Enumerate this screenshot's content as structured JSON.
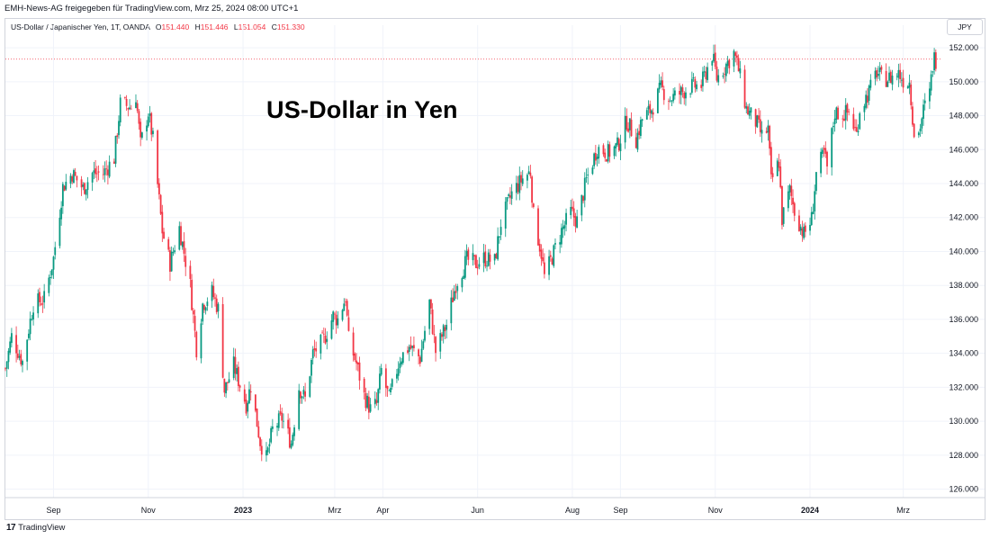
{
  "header": {
    "attribution": "EMH-News-AG freigegeben für TradingView.com, Mrz 25, 2024 08:00 UTC+1"
  },
  "legend": {
    "symbol": "US-Dollar / Japanischer Yen, 1T, OANDA",
    "o_label": "O",
    "o_value": "151.440",
    "h_label": "H",
    "h_value": "151.446",
    "l_label": "L",
    "l_value": "151.054",
    "c_label": "C",
    "c_value": "151.330"
  },
  "currency": "JPY",
  "footer": {
    "logo": "17",
    "brand": "TradingView"
  },
  "colors": {
    "up": "#089981",
    "down": "#f23645",
    "grid": "#f0f3fa",
    "axis_text": "#131722"
  },
  "chart_data": {
    "type": "candlestick",
    "title": "US-Dollar in Yen",
    "xlabel": "",
    "ylabel": "",
    "ylim": [
      125.5,
      152.8
    ],
    "grid": true,
    "y_ticks": [
      "126.000",
      "128.000",
      "130.000",
      "132.000",
      "134.000",
      "136.000",
      "138.000",
      "140.000",
      "142.000",
      "144.000",
      "146.000",
      "148.000",
      "150.000",
      "152.000"
    ],
    "x_ticks": [
      {
        "label": "Sep",
        "date": "2022-09-01",
        "bold": false
      },
      {
        "label": "Nov",
        "date": "2022-11-01",
        "bold": false
      },
      {
        "label": "2023",
        "date": "2023-01-01",
        "bold": true
      },
      {
        "label": "Mrz",
        "date": "2023-03-01",
        "bold": false
      },
      {
        "label": "Apr",
        "date": "2023-04-01",
        "bold": false
      },
      {
        "label": "Jun",
        "date": "2023-06-01",
        "bold": false
      },
      {
        "label": "Aug",
        "date": "2023-08-01",
        "bold": false
      },
      {
        "label": "Sep",
        "date": "2023-09-01",
        "bold": false
      },
      {
        "label": "Nov",
        "date": "2023-11-01",
        "bold": false
      },
      {
        "label": "2024",
        "date": "2024-01-01",
        "bold": true
      },
      {
        "label": "Mrz",
        "date": "2024-03-01",
        "bold": false
      }
    ],
    "last_price": 151.33,
    "close_series": [
      [
        "2022-08-01",
        133.1
      ],
      [
        "2022-08-05",
        135.0
      ],
      [
        "2022-08-12",
        133.5
      ],
      [
        "2022-08-19",
        136.9
      ],
      [
        "2022-08-26",
        137.2
      ],
      [
        "2022-09-01",
        139.6
      ],
      [
        "2022-09-07",
        143.8
      ],
      [
        "2022-09-13",
        144.6
      ],
      [
        "2022-09-20",
        143.7
      ],
      [
        "2022-09-26",
        144.6
      ],
      [
        "2022-10-03",
        144.6
      ],
      [
        "2022-10-10",
        145.5
      ],
      [
        "2022-10-14",
        148.7
      ],
      [
        "2022-10-21",
        148.5
      ],
      [
        "2022-10-24",
        149.2
      ],
      [
        "2022-10-27",
        146.3
      ],
      [
        "2022-11-01",
        148.2
      ],
      [
        "2022-11-04",
        146.6
      ],
      [
        "2022-11-10",
        141.2
      ],
      [
        "2022-11-15",
        139.3
      ],
      [
        "2022-11-21",
        141.4
      ],
      [
        "2022-11-28",
        138.0
      ],
      [
        "2022-12-02",
        134.3
      ],
      [
        "2022-12-06",
        136.9
      ],
      [
        "2022-12-12",
        137.6
      ],
      [
        "2022-12-16",
        136.6
      ],
      [
        "2022-12-20",
        131.8
      ],
      [
        "2022-12-26",
        133.3
      ],
      [
        "2023-01-03",
        131.0
      ],
      [
        "2023-01-06",
        132.1
      ],
      [
        "2023-01-12",
        128.8
      ],
      [
        "2023-01-16",
        127.8
      ],
      [
        "2023-01-20",
        129.5
      ],
      [
        "2023-01-26",
        130.2
      ],
      [
        "2023-02-01",
        128.7
      ],
      [
        "2023-02-06",
        132.0
      ],
      [
        "2023-02-10",
        131.3
      ],
      [
        "2023-02-15",
        134.0
      ],
      [
        "2023-02-22",
        134.8
      ],
      [
        "2023-02-28",
        136.2
      ],
      [
        "2023-03-03",
        136.0
      ],
      [
        "2023-03-08",
        137.3
      ],
      [
        "2023-03-10",
        134.8
      ],
      [
        "2023-03-15",
        133.4
      ],
      [
        "2023-03-20",
        131.5
      ],
      [
        "2023-03-24",
        130.7
      ],
      [
        "2023-03-28",
        131.0
      ],
      [
        "2023-03-31",
        133.0
      ],
      [
        "2023-04-05",
        131.3
      ],
      [
        "2023-04-12",
        133.7
      ],
      [
        "2023-04-18",
        134.4
      ],
      [
        "2023-04-25",
        133.7
      ],
      [
        "2023-05-01",
        137.0
      ],
      [
        "2023-05-05",
        134.1
      ],
      [
        "2023-05-12",
        135.7
      ],
      [
        "2023-05-18",
        138.1
      ],
      [
        "2023-05-25",
        139.5
      ],
      [
        "2023-05-31",
        139.3
      ],
      [
        "2023-06-05",
        139.6
      ],
      [
        "2023-06-12",
        139.4
      ],
      [
        "2023-06-16",
        141.7
      ],
      [
        "2023-06-23",
        143.4
      ],
      [
        "2023-06-30",
        144.3
      ],
      [
        "2023-07-05",
        144.7
      ],
      [
        "2023-07-07",
        142.1
      ],
      [
        "2023-07-12",
        139.9
      ],
      [
        "2023-07-14",
        138.5
      ],
      [
        "2023-07-19",
        139.7
      ],
      [
        "2023-07-25",
        141.2
      ],
      [
        "2023-07-31",
        142.3
      ],
      [
        "2023-08-04",
        141.8
      ],
      [
        "2023-08-10",
        144.2
      ],
      [
        "2023-08-17",
        146.1
      ],
      [
        "2023-08-24",
        145.8
      ],
      [
        "2023-08-30",
        146.2
      ],
      [
        "2023-09-05",
        147.7
      ],
      [
        "2023-09-11",
        146.6
      ],
      [
        "2023-09-15",
        147.8
      ],
      [
        "2023-09-21",
        148.4
      ],
      [
        "2023-09-27",
        149.6
      ],
      [
        "2023-10-03",
        149.0
      ],
      [
        "2023-10-09",
        149.3
      ],
      [
        "2023-10-16",
        149.7
      ],
      [
        "2023-10-23",
        149.8
      ],
      [
        "2023-10-30",
        151.6
      ],
      [
        "2023-11-02",
        150.2
      ],
      [
        "2023-11-08",
        151.0
      ],
      [
        "2023-11-13",
        151.7
      ],
      [
        "2023-11-16",
        150.7
      ],
      [
        "2023-11-21",
        148.4
      ],
      [
        "2023-11-28",
        147.5
      ],
      [
        "2023-12-01",
        146.8
      ],
      [
        "2023-12-05",
        147.2
      ],
      [
        "2023-12-07",
        144.1
      ],
      [
        "2023-12-12",
        145.3
      ],
      [
        "2023-12-14",
        141.9
      ],
      [
        "2023-12-19",
        143.6
      ],
      [
        "2023-12-22",
        142.4
      ],
      [
        "2023-12-28",
        141.0
      ],
      [
        "2024-01-02",
        141.9
      ],
      [
        "2024-01-05",
        144.6
      ],
      [
        "2024-01-10",
        145.8
      ],
      [
        "2024-01-12",
        144.9
      ],
      [
        "2024-01-17",
        148.2
      ],
      [
        "2024-01-22",
        148.1
      ],
      [
        "2024-01-26",
        148.2
      ],
      [
        "2024-01-31",
        146.9
      ],
      [
        "2024-02-02",
        148.4
      ],
      [
        "2024-02-08",
        149.4
      ],
      [
        "2024-02-13",
        150.6
      ],
      [
        "2024-02-16",
        150.2
      ],
      [
        "2024-02-21",
        150.2
      ],
      [
        "2024-02-27",
        150.5
      ],
      [
        "2024-03-01",
        150.1
      ],
      [
        "2024-03-05",
        150.0
      ],
      [
        "2024-03-08",
        147.0
      ],
      [
        "2024-03-11",
        147.0
      ],
      [
        "2024-03-14",
        148.3
      ],
      [
        "2024-03-18",
        149.3
      ],
      [
        "2024-03-20",
        151.0
      ],
      [
        "2024-03-21",
        151.4
      ],
      [
        "2024-03-22",
        151.3
      ]
    ]
  }
}
